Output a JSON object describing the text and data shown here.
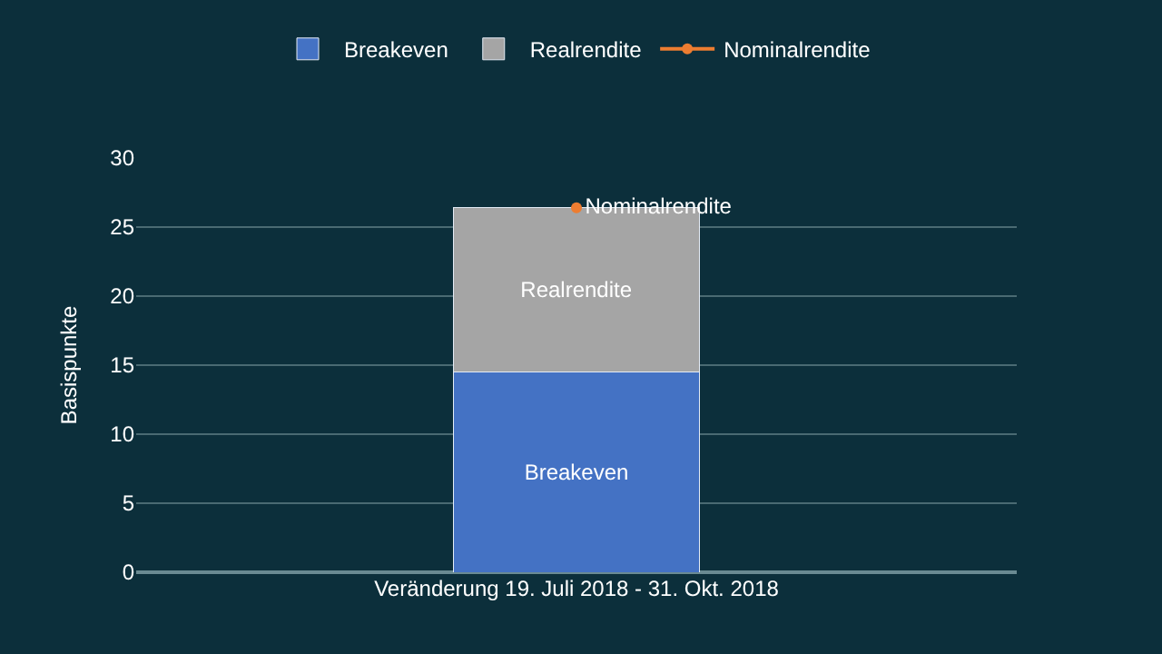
{
  "chart_data": {
    "type": "bar",
    "stacked": true,
    "ylabel": "Basispunkte",
    "categories": [
      "Veränderung 19. Juli 2018 - 31. Okt. 2018"
    ],
    "series": [
      {
        "name": "Breakeven",
        "color": "#4472c4",
        "values": [
          14.5
        ],
        "value_labels": [
          "Breakeven"
        ]
      },
      {
        "name": "Realrendite",
        "color": "#a5a5a5",
        "values": [
          11.9
        ],
        "value_labels": [
          "Realrendite"
        ]
      },
      {
        "name": "Nominalrendite",
        "type": "line",
        "color": "#ed7d31",
        "values": [
          26.4
        ],
        "value_labels": [
          "Nominalrendite"
        ],
        "marker": "circle"
      }
    ],
    "ylim": [
      0,
      30
    ],
    "yticks": [
      0,
      5,
      10,
      15,
      20,
      25,
      30
    ],
    "grid": "y",
    "legend": "top"
  }
}
